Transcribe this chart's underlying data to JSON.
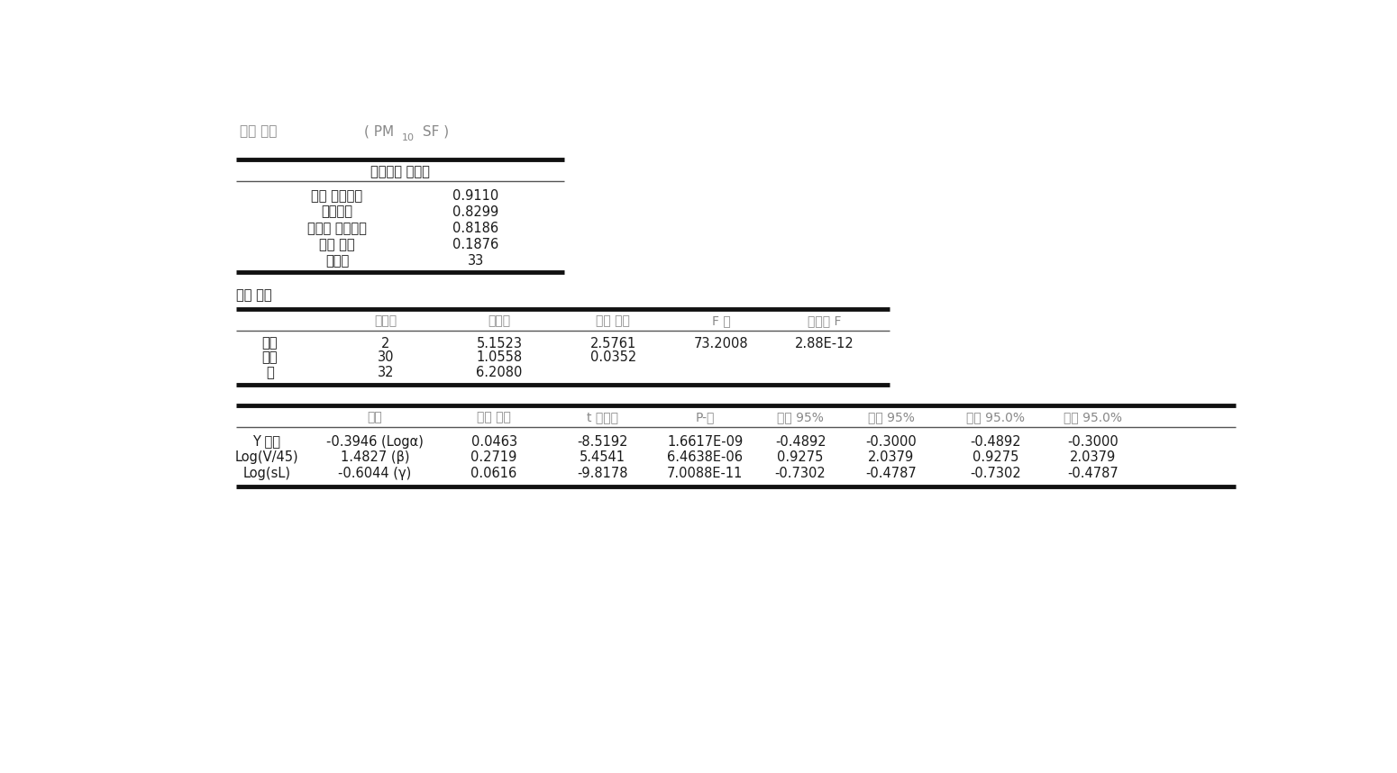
{
  "title_label": "요약 출력",
  "title_pm": "( PM",
  "title_sub10": "10",
  "title_sf": " SF )",
  "section1_title": "회귀분석 통계량",
  "section1_rows": [
    [
      "다중 상관계수",
      "0.9110"
    ],
    [
      "결정계수",
      "0.8299"
    ],
    [
      "조정된 결정계수",
      "0.8186"
    ],
    [
      "표준 오차",
      "0.1876"
    ],
    [
      "관측수",
      "33"
    ]
  ],
  "section2_title": "분산 분석",
  "section2_headers": [
    "",
    "자유도",
    "제곱합",
    "제곱 평균",
    "F 비",
    "유의한 F"
  ],
  "section2_rows": [
    [
      "회귀",
      "2",
      "5.1523",
      "2.5761",
      "73.2008",
      "2.88E-12"
    ],
    [
      "재차",
      "30",
      "1.0558",
      "0.0352",
      "",
      ""
    ],
    [
      "계",
      "32",
      "6.2080",
      "",
      "",
      ""
    ]
  ],
  "section3_headers": [
    "",
    "계수",
    "표준 오차",
    "t 통계량",
    "P-값",
    "하위 95%",
    "상위 95%",
    "하위 95.0%",
    "상위 95.0%"
  ],
  "section3_rows": [
    [
      "Y 절편",
      "-0.3946 (Logα)",
      "0.0463",
      "-8.5192",
      "1.6617E-09",
      "-0.4892",
      "-0.3000",
      "-0.4892",
      "-0.3000"
    ],
    [
      "Log(V/45)",
      "1.4827 (β)",
      "0.2719",
      "5.4541",
      "6.4638E-06",
      "0.9275",
      "2.0379",
      "0.9275",
      "2.0379"
    ],
    [
      "Log(sL)",
      "-0.6044 (γ)",
      "0.0616",
      "-9.8178",
      "7.0088E-11",
      "-0.7302",
      "-0.4787",
      "-0.7302",
      "-0.4787"
    ]
  ],
  "bg_color": "#ffffff",
  "text_color": "#1a1a1a",
  "gray_color": "#888888",
  "font_size": 10.5,
  "title_font_size": 11,
  "header_font_size": 10
}
